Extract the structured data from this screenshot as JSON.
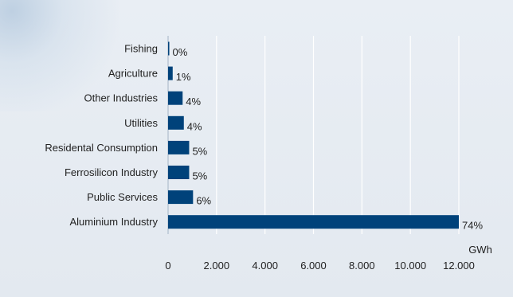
{
  "chart_data": {
    "type": "bar",
    "orientation": "horizontal",
    "categories": [
      "Fishing",
      "Agriculture",
      "Other Industries",
      "Utilities",
      "Residental Consumption",
      "Ferrosilicon Industry",
      "Public Services",
      "Aluminium Industry"
    ],
    "values": [
      50,
      190,
      600,
      650,
      870,
      870,
      1030,
      12000
    ],
    "value_labels": [
      "0%",
      "1%",
      "4%",
      "4%",
      "5%",
      "5%",
      "6%",
      "74%"
    ],
    "x_ticks": [
      "0",
      "2.000",
      "4.000",
      "6.000",
      "8.000",
      "10.000",
      "12.000"
    ],
    "x_unit": "GWh",
    "xlim": [
      0,
      12000
    ],
    "grid": true,
    "bar_color": "#00427a",
    "grid_color": "#ffffff",
    "title": "",
    "xlabel": "",
    "ylabel": ""
  }
}
